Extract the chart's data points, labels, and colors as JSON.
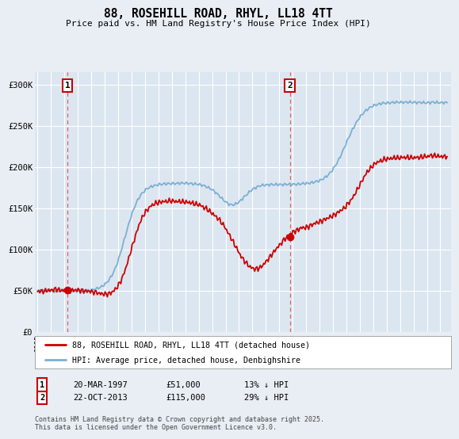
{
  "title": "88, ROSEHILL ROAD, RHYL, LL18 4TT",
  "subtitle": "Price paid vs. HM Land Registry's House Price Index (HPI)",
  "ylabel_ticks": [
    "£0",
    "£50K",
    "£100K",
    "£150K",
    "£200K",
    "£250K",
    "£300K"
  ],
  "ytick_values": [
    0,
    50000,
    100000,
    150000,
    200000,
    250000,
    300000
  ],
  "ylim": [
    0,
    315000
  ],
  "xlim_start": 1994.8,
  "xlim_end": 2025.8,
  "sale1_x": 1997.22,
  "sale1_y": 51000,
  "sale1_label": "1",
  "sale1_date": "20-MAR-1997",
  "sale1_price": "£51,000",
  "sale1_hpi": "13% ↓ HPI",
  "sale2_x": 2013.81,
  "sale2_y": 115000,
  "sale2_label": "2",
  "sale2_date": "22-OCT-2013",
  "sale2_price": "£115,000",
  "sale2_hpi": "29% ↓ HPI",
  "legend_label_red": "88, ROSEHILL ROAD, RHYL, LL18 4TT (detached house)",
  "legend_label_blue": "HPI: Average price, detached house, Denbighshire",
  "footnote": "Contains HM Land Registry data © Crown copyright and database right 2025.\nThis data is licensed under the Open Government Licence v3.0.",
  "red_color": "#cc0000",
  "blue_color": "#7bafd4",
  "bg_color": "#e8eef4",
  "plot_bg": "#dce6f0",
  "grid_color": "#ffffff",
  "dashed_color": "#e06060"
}
